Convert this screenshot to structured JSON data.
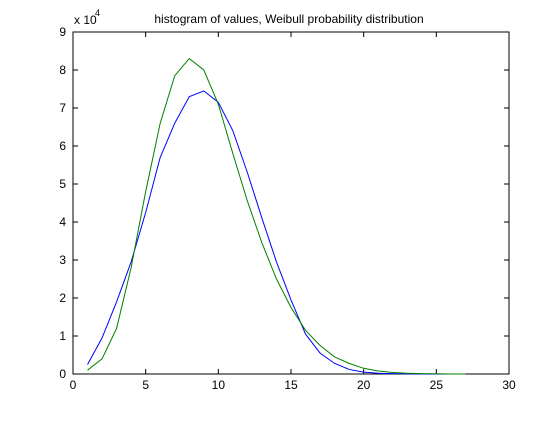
{
  "chart_data": {
    "type": "line",
    "title": "histogram of values, Weibull probability distribution",
    "xlabel": "",
    "ylabel": "",
    "xlim": [
      0,
      30
    ],
    "ylim": [
      0,
      9
    ],
    "y_scale_label": "x 10",
    "y_scale_exponent": "4",
    "x_ticks": [
      "0",
      "5",
      "10",
      "15",
      "20",
      "25",
      "30"
    ],
    "y_ticks": [
      "0",
      "1",
      "2",
      "3",
      "4",
      "5",
      "6",
      "7",
      "8",
      "9"
    ],
    "grid": false,
    "legend": "none",
    "series": [
      {
        "color": "#0000ff",
        "x": [
          1,
          2,
          3,
          4,
          5,
          6,
          7,
          8,
          9,
          10,
          11,
          12,
          13,
          14,
          15,
          16,
          17,
          18,
          19,
          20,
          21,
          22,
          23,
          24,
          25,
          26,
          27
        ],
        "y": [
          0.25,
          0.95,
          1.9,
          2.95,
          4.25,
          5.7,
          6.6,
          7.3,
          7.45,
          7.15,
          6.4,
          5.3,
          4.1,
          2.95,
          1.95,
          1.05,
          0.55,
          0.28,
          0.12,
          0.05,
          0.02,
          0.01,
          0.005,
          0,
          0,
          0,
          0
        ]
      },
      {
        "color": "#008000",
        "x": [
          1,
          2,
          3,
          4,
          5,
          6,
          7,
          8,
          9,
          10,
          11,
          12,
          13,
          14,
          15,
          16,
          17,
          18,
          19,
          20,
          21,
          22,
          23,
          24,
          25,
          26,
          27
        ],
        "y": [
          0.1,
          0.4,
          1.2,
          2.8,
          4.8,
          6.6,
          7.85,
          8.3,
          8.0,
          7.1,
          5.8,
          4.55,
          3.45,
          2.5,
          1.75,
          1.15,
          0.75,
          0.45,
          0.28,
          0.15,
          0.08,
          0.04,
          0.02,
          0.01,
          0.005,
          0,
          0
        ]
      }
    ]
  }
}
